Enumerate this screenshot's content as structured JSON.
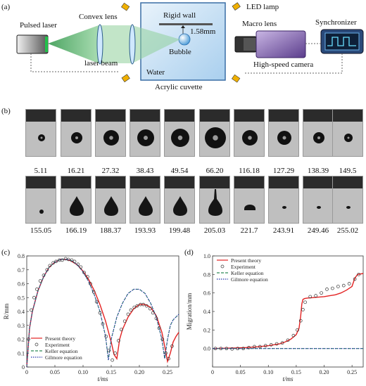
{
  "panel_a": {
    "label": "(a)",
    "pulsed_laser": "Pulsed laser",
    "convex_lens": "Convex lens",
    "laser_beam": "laser beam",
    "rigid_wall": "Rigid wall",
    "distance": "1.58mm",
    "bubble": "Bubble",
    "water": "Water",
    "cuvette": "Acrylic cuvette",
    "led_lamp": "LED lamp",
    "macro_lens": "Macro lens",
    "synchronizer": "Synchronizer",
    "camera": "High-speed camera"
  },
  "panel_b": {
    "label": "(b)",
    "row1_times": [
      "5.11",
      "16.21",
      "27.32",
      "38.43",
      "49.54",
      "66.20",
      "116.18",
      "127.29",
      "138.39",
      "149.5"
    ],
    "row2_times": [
      "155.05",
      "166.19",
      "188.37",
      "193.93",
      "199.48",
      "205.03",
      "221.7",
      "243.91",
      "249.46",
      "255.02"
    ],
    "row1_radii": [
      5,
      8,
      11,
      12,
      13,
      15,
      11,
      10,
      8,
      6
    ]
  },
  "chart_data": [
    {
      "type": "line",
      "label": "(c)",
      "xlabel": "t/ms",
      "ylabel": "R/mm",
      "xlim": [
        0,
        0.27
      ],
      "ylim": [
        0,
        0.8
      ],
      "xticks": [
        "0",
        "0.05",
        "0.10",
        "0.15",
        "0.20",
        "0.25"
      ],
      "yticks": [
        "0",
        "0.1",
        "0.2",
        "0.3",
        "0.4",
        "0.5",
        "0.6",
        "0.7",
        "0.8"
      ],
      "legend": [
        "Present theory",
        "Experiment",
        "Keller equation",
        "Gilmore equation"
      ],
      "legend_position": "bottom-left",
      "series": [
        {
          "name": "Present theory",
          "color": "#e32222",
          "x": [
            0,
            0.005,
            0.01,
            0.02,
            0.03,
            0.04,
            0.05,
            0.06,
            0.07,
            0.075,
            0.08,
            0.09,
            0.1,
            0.11,
            0.12,
            0.13,
            0.14,
            0.15,
            0.155,
            0.16,
            0.165,
            0.17,
            0.18,
            0.19,
            0.2,
            0.21,
            0.22,
            0.23,
            0.24,
            0.245,
            0.25,
            0.255,
            0.26,
            0.265,
            0.27
          ],
          "y": [
            0,
            0.28,
            0.4,
            0.55,
            0.65,
            0.72,
            0.755,
            0.775,
            0.775,
            0.77,
            0.76,
            0.735,
            0.69,
            0.63,
            0.55,
            0.45,
            0.33,
            0.18,
            0.09,
            0.06,
            0.2,
            0.27,
            0.36,
            0.42,
            0.45,
            0.45,
            0.43,
            0.37,
            0.25,
            0.15,
            0.04,
            0.1,
            0.18,
            0.22,
            0.25
          ]
        },
        {
          "name": "Keller equation",
          "color": "#2e8b57",
          "x": [
            0,
            0.005,
            0.01,
            0.02,
            0.03,
            0.04,
            0.05,
            0.06,
            0.07,
            0.075,
            0.08,
            0.09,
            0.1,
            0.11,
            0.12,
            0.13,
            0.14,
            0.145,
            0.15,
            0.16,
            0.17,
            0.18,
            0.19,
            0.2,
            0.21,
            0.22,
            0.23,
            0.24,
            0.245,
            0.25,
            0.255,
            0.26,
            0.27
          ],
          "y": [
            0,
            0.28,
            0.4,
            0.55,
            0.65,
            0.72,
            0.755,
            0.775,
            0.775,
            0.772,
            0.765,
            0.735,
            0.685,
            0.615,
            0.52,
            0.4,
            0.22,
            0.05,
            0.2,
            0.36,
            0.46,
            0.53,
            0.56,
            0.56,
            0.53,
            0.46,
            0.36,
            0.2,
            0.06,
            0.2,
            0.3,
            0.34,
            0.38
          ]
        },
        {
          "name": "Gilmore equation",
          "color": "#2233aa",
          "x": [
            0,
            0.005,
            0.01,
            0.02,
            0.03,
            0.04,
            0.05,
            0.06,
            0.07,
            0.075,
            0.08,
            0.09,
            0.1,
            0.11,
            0.12,
            0.13,
            0.14,
            0.145,
            0.15,
            0.16,
            0.17,
            0.18,
            0.19,
            0.2,
            0.21,
            0.22,
            0.23,
            0.24,
            0.245,
            0.25,
            0.255,
            0.26,
            0.27
          ],
          "y": [
            0,
            0.28,
            0.4,
            0.55,
            0.65,
            0.72,
            0.755,
            0.775,
            0.775,
            0.772,
            0.765,
            0.735,
            0.685,
            0.615,
            0.52,
            0.4,
            0.22,
            0.05,
            0.2,
            0.36,
            0.46,
            0.53,
            0.56,
            0.56,
            0.53,
            0.46,
            0.36,
            0.2,
            0.06,
            0.2,
            0.3,
            0.34,
            0.38
          ]
        },
        {
          "name": "Experiment",
          "kind": "scatter",
          "color": "#333333",
          "x": [
            0.003,
            0.008,
            0.013,
            0.018,
            0.024,
            0.03,
            0.036,
            0.041,
            0.047,
            0.052,
            0.058,
            0.063,
            0.069,
            0.074,
            0.08,
            0.085,
            0.091,
            0.096,
            0.102,
            0.108,
            0.113,
            0.119,
            0.124,
            0.13,
            0.135,
            0.141,
            0.146,
            0.152,
            0.157,
            0.163,
            0.168,
            0.174,
            0.18,
            0.185,
            0.191,
            0.196,
            0.202,
            0.207,
            0.213,
            0.219,
            0.224,
            0.23,
            0.235,
            0.241,
            0.247,
            0.252,
            0.258
          ],
          "y": [
            0.2,
            0.41,
            0.5,
            0.56,
            0.62,
            0.66,
            0.7,
            0.73,
            0.75,
            0.76,
            0.77,
            0.77,
            0.78,
            0.775,
            0.77,
            0.76,
            0.74,
            0.72,
            0.68,
            0.65,
            0.6,
            0.54,
            0.47,
            0.39,
            0.31,
            0.22,
            0.12,
            0.05,
            0.1,
            0.19,
            0.27,
            0.33,
            0.38,
            0.41,
            0.43,
            0.44,
            0.45,
            0.45,
            0.44,
            0.42,
            0.39,
            0.35,
            0.28,
            0.2,
            0.1,
            0.06,
            0.15
          ]
        }
      ]
    },
    {
      "type": "line",
      "label": "(d)",
      "xlabel": "t/ms",
      "ylabel": "Migration/mm",
      "xlim": [
        0,
        0.27
      ],
      "ylim": [
        -0.2,
        1.0
      ],
      "xticks": [
        "0",
        "0.05",
        "0.10",
        "0.15",
        "0.20",
        "0.25"
      ],
      "yticks": [
        "0.0",
        "0.2",
        "0.4",
        "0.6",
        "0.8",
        "1.0"
      ],
      "legend": [
        "Present theory",
        "Experiment",
        "Keller equation",
        "Gilmore equation"
      ],
      "legend_position": "top-left",
      "series": [
        {
          "name": "Present theory",
          "color": "#e32222",
          "x": [
            0,
            0.02,
            0.04,
            0.06,
            0.08,
            0.1,
            0.12,
            0.13,
            0.14,
            0.15,
            0.155,
            0.158,
            0.16,
            0.162,
            0.165,
            0.17,
            0.18,
            0.19,
            0.2,
            0.21,
            0.22,
            0.23,
            0.24,
            0.25,
            0.255,
            0.26,
            0.27
          ],
          "y": [
            0,
            0.003,
            0.006,
            0.01,
            0.018,
            0.03,
            0.05,
            0.07,
            0.1,
            0.15,
            0.22,
            0.35,
            0.48,
            0.53,
            0.54,
            0.545,
            0.55,
            0.555,
            0.56,
            0.57,
            0.58,
            0.6,
            0.63,
            0.67,
            0.76,
            0.8,
            0.81
          ]
        },
        {
          "name": "Keller equation",
          "color": "#2e8b57",
          "x": [
            0,
            0.27
          ],
          "y": [
            0,
            0
          ]
        },
        {
          "name": "Gilmore equation",
          "color": "#2233aa",
          "x": [
            0,
            0.27
          ],
          "y": [
            0,
            0
          ]
        },
        {
          "name": "Experiment",
          "kind": "scatter",
          "color": "#333333",
          "x": [
            0.005,
            0.015,
            0.025,
            0.035,
            0.045,
            0.055,
            0.065,
            0.075,
            0.085,
            0.095,
            0.105,
            0.115,
            0.125,
            0.135,
            0.145,
            0.152,
            0.158,
            0.162,
            0.166,
            0.175,
            0.185,
            0.195,
            0.205,
            0.215,
            0.225,
            0.235,
            0.245,
            0.255,
            0.262
          ],
          "y": [
            0,
            0,
            0,
            -0.005,
            0,
            0,
            0.01,
            0.02,
            0.02,
            0.03,
            0.04,
            0.05,
            0.06,
            0.09,
            0.14,
            0.2,
            0.3,
            0.42,
            0.5,
            0.56,
            0.57,
            0.6,
            0.64,
            0.65,
            0.67,
            0.68,
            0.7,
            0.75,
            0.8
          ]
        }
      ]
    }
  ]
}
